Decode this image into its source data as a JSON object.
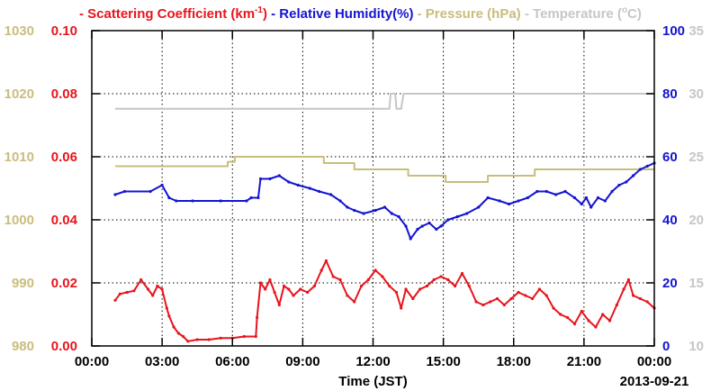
{
  "chart_data": {
    "type": "line",
    "legend": [
      {
        "text": "- Scattering Coefficient (km",
        "sup": "-1",
        "tail": ")",
        "color": "#e8141c"
      },
      {
        "text": "- Relative Humidity(%)",
        "color": "#1414d2"
      },
      {
        "text": "- Pressure (hPa)",
        "color": "#c9bd7c"
      },
      {
        "text": "- Temperature (",
        "sup": "o",
        "tail": "C)",
        "color": "#c6c6c6"
      }
    ],
    "xlabel": "Time (JST)",
    "date_label": "2013-09-21",
    "x_ticks": [
      "00:00",
      "03:00",
      "06:00",
      "09:00",
      "12:00",
      "15:00",
      "18:00",
      "21:00",
      "00:00"
    ],
    "xlim_hours": [
      0,
      24
    ],
    "axes": {
      "pressure": {
        "ticks": [
          "1030",
          "1020",
          "1010",
          "1000",
          "990",
          "980"
        ],
        "ylim": [
          980,
          1030
        ],
        "color": "#c9bd7c"
      },
      "scattering": {
        "ticks": [
          "0.10",
          "0.08",
          "0.06",
          "0.04",
          "0.02",
          "0.00"
        ],
        "ylim": [
          0,
          0.1
        ],
        "color": "#e8141c"
      },
      "humidity": {
        "ticks": [
          "100",
          "80",
          "60",
          "40",
          "20",
          "0"
        ],
        "ylim": [
          0,
          100
        ],
        "color": "#1414d2"
      },
      "temperature": {
        "ticks": [
          "35",
          "30",
          "25",
          "20",
          "15",
          "10"
        ],
        "ylim": [
          10,
          35
        ],
        "color": "#c6c6c6"
      }
    },
    "grid": true,
    "series": [
      {
        "key": "temperature",
        "axis": "temperature",
        "color": "#c6c6c6",
        "points": [
          [
            1.0,
            28.8
          ],
          [
            12.7,
            28.8
          ],
          [
            12.75,
            30.0
          ],
          [
            12.95,
            30.0
          ],
          [
            13.0,
            28.8
          ],
          [
            13.2,
            28.8
          ],
          [
            13.3,
            30.0
          ],
          [
            24.0,
            30.0
          ]
        ]
      },
      {
        "key": "pressure",
        "axis": "pressure",
        "color": "#c9bd7c",
        "points": [
          [
            1.0,
            1008.5
          ],
          [
            5.8,
            1008.5
          ],
          [
            5.8,
            1009.2
          ],
          [
            6.1,
            1009.2
          ],
          [
            6.1,
            1010
          ],
          [
            9.9,
            1010
          ],
          [
            9.9,
            1009
          ],
          [
            11.2,
            1009
          ],
          [
            11.2,
            1008
          ],
          [
            13.5,
            1008
          ],
          [
            13.5,
            1007
          ],
          [
            15.1,
            1007
          ],
          [
            15.1,
            1006
          ],
          [
            16.9,
            1006
          ],
          [
            16.9,
            1007
          ],
          [
            18.9,
            1007
          ],
          [
            18.9,
            1008
          ],
          [
            24.0,
            1008
          ]
        ]
      },
      {
        "key": "humidity",
        "axis": "humidity",
        "color": "#1414d2",
        "points": [
          [
            1.0,
            48
          ],
          [
            1.4,
            49
          ],
          [
            2.5,
            49
          ],
          [
            3.0,
            51
          ],
          [
            3.3,
            47
          ],
          [
            3.6,
            46
          ],
          [
            4.3,
            46
          ],
          [
            5.5,
            46
          ],
          [
            6.6,
            46
          ],
          [
            6.8,
            47
          ],
          [
            7.1,
            47
          ],
          [
            7.2,
            53
          ],
          [
            7.6,
            53
          ],
          [
            8.0,
            54
          ],
          [
            8.4,
            52
          ],
          [
            8.8,
            51
          ],
          [
            9.3,
            50
          ],
          [
            9.7,
            49
          ],
          [
            10.2,
            48
          ],
          [
            10.6,
            46
          ],
          [
            10.9,
            44
          ],
          [
            11.2,
            43
          ],
          [
            11.6,
            42
          ],
          [
            12.1,
            43
          ],
          [
            12.5,
            44
          ],
          [
            12.8,
            42
          ],
          [
            13.1,
            41
          ],
          [
            13.4,
            38
          ],
          [
            13.6,
            34
          ],
          [
            13.9,
            37
          ],
          [
            14.1,
            38
          ],
          [
            14.4,
            39
          ],
          [
            14.7,
            37
          ],
          [
            14.9,
            38
          ],
          [
            15.2,
            40
          ],
          [
            15.6,
            41
          ],
          [
            16.0,
            42
          ],
          [
            16.5,
            44
          ],
          [
            16.9,
            47
          ],
          [
            17.4,
            46
          ],
          [
            17.8,
            45
          ],
          [
            18.2,
            46
          ],
          [
            18.6,
            47
          ],
          [
            19.0,
            49
          ],
          [
            19.4,
            49
          ],
          [
            19.8,
            48
          ],
          [
            20.2,
            49
          ],
          [
            20.6,
            47
          ],
          [
            20.9,
            45
          ],
          [
            21.1,
            47
          ],
          [
            21.3,
            44
          ],
          [
            21.6,
            47
          ],
          [
            21.9,
            46
          ],
          [
            22.2,
            49
          ],
          [
            22.5,
            51
          ],
          [
            22.8,
            52
          ],
          [
            23.1,
            54
          ],
          [
            23.4,
            56
          ],
          [
            23.7,
            57
          ],
          [
            24.0,
            58
          ]
        ]
      },
      {
        "key": "scattering",
        "axis": "scattering",
        "color": "#e8141c",
        "points": [
          [
            1.0,
            0.0145
          ],
          [
            1.2,
            0.0165
          ],
          [
            1.5,
            0.017
          ],
          [
            1.8,
            0.0175
          ],
          [
            2.1,
            0.021
          ],
          [
            2.4,
            0.018
          ],
          [
            2.6,
            0.016
          ],
          [
            2.8,
            0.019
          ],
          [
            3.0,
            0.018
          ],
          [
            3.2,
            0.012
          ],
          [
            3.3,
            0.0095
          ],
          [
            3.5,
            0.006
          ],
          [
            3.7,
            0.004
          ],
          [
            3.9,
            0.003
          ],
          [
            4.1,
            0.0015
          ],
          [
            4.5,
            0.002
          ],
          [
            5.0,
            0.002
          ],
          [
            5.5,
            0.0025
          ],
          [
            6.0,
            0.0025
          ],
          [
            6.5,
            0.003
          ],
          [
            7.0,
            0.003
          ],
          [
            7.05,
            0.009
          ],
          [
            7.2,
            0.02
          ],
          [
            7.4,
            0.018
          ],
          [
            7.6,
            0.021
          ],
          [
            7.8,
            0.017
          ],
          [
            8.0,
            0.013
          ],
          [
            8.2,
            0.019
          ],
          [
            8.4,
            0.018
          ],
          [
            8.6,
            0.016
          ],
          [
            8.9,
            0.018
          ],
          [
            9.2,
            0.017
          ],
          [
            9.5,
            0.019
          ],
          [
            9.8,
            0.024
          ],
          [
            10.0,
            0.027
          ],
          [
            10.3,
            0.022
          ],
          [
            10.6,
            0.021
          ],
          [
            10.9,
            0.016
          ],
          [
            11.2,
            0.014
          ],
          [
            11.5,
            0.019
          ],
          [
            11.8,
            0.021
          ],
          [
            12.1,
            0.024
          ],
          [
            12.4,
            0.022
          ],
          [
            12.7,
            0.019
          ],
          [
            13.0,
            0.017
          ],
          [
            13.2,
            0.012
          ],
          [
            13.4,
            0.018
          ],
          [
            13.7,
            0.015
          ],
          [
            14.0,
            0.018
          ],
          [
            14.3,
            0.019
          ],
          [
            14.6,
            0.021
          ],
          [
            14.9,
            0.022
          ],
          [
            15.2,
            0.021
          ],
          [
            15.5,
            0.019
          ],
          [
            15.8,
            0.023
          ],
          [
            16.1,
            0.019
          ],
          [
            16.4,
            0.014
          ],
          [
            16.7,
            0.013
          ],
          [
            17.0,
            0.014
          ],
          [
            17.3,
            0.015
          ],
          [
            17.6,
            0.013
          ],
          [
            17.9,
            0.015
          ],
          [
            18.2,
            0.017
          ],
          [
            18.5,
            0.016
          ],
          [
            18.8,
            0.015
          ],
          [
            19.1,
            0.018
          ],
          [
            19.4,
            0.016
          ],
          [
            19.7,
            0.012
          ],
          [
            20.0,
            0.01
          ],
          [
            20.3,
            0.009
          ],
          [
            20.6,
            0.007
          ],
          [
            20.9,
            0.011
          ],
          [
            21.2,
            0.008
          ],
          [
            21.5,
            0.006
          ],
          [
            21.8,
            0.01
          ],
          [
            22.1,
            0.008
          ],
          [
            22.4,
            0.013
          ],
          [
            22.7,
            0.018
          ],
          [
            22.9,
            0.021
          ],
          [
            23.1,
            0.016
          ],
          [
            23.4,
            0.015
          ],
          [
            23.7,
            0.014
          ],
          [
            24.0,
            0.012
          ]
        ]
      }
    ]
  }
}
